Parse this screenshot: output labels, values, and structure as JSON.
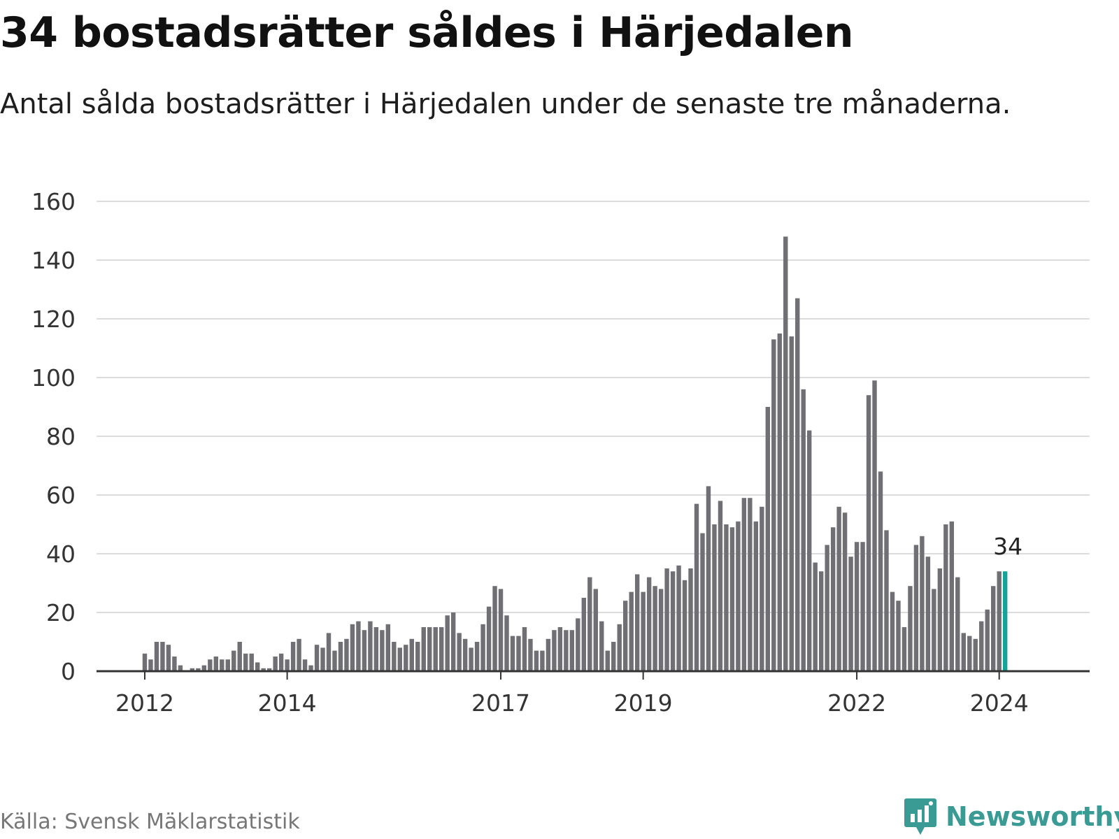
{
  "title": "34 bostadsrätter såldes i Härjedalen",
  "subtitle": "Antal sålda bostadsrätter i Härjedalen under de senaste tre månaderna.",
  "source": "Källa: Svensk Mäklarstatistik",
  "brand": "Newsworthy",
  "colors": {
    "bar": "#707074",
    "highlight": "#14a39b",
    "grid": "#dcdcdc",
    "axis": "#333333",
    "brand": "#3a9a94"
  },
  "chart_data": {
    "type": "bar",
    "title": "34 bostadsrätter såldes i Härjedalen",
    "xlabel": "",
    "ylabel": "",
    "ylim": [
      0,
      160
    ],
    "yticks": [
      0,
      20,
      40,
      60,
      80,
      100,
      120,
      140,
      160
    ],
    "xticks": [
      {
        "label": "2012",
        "index": 0
      },
      {
        "label": "2014",
        "index": 24
      },
      {
        "label": "2017",
        "index": 60
      },
      {
        "label": "2019",
        "index": 84
      },
      {
        "label": "2022",
        "index": 120
      },
      {
        "label": "2024",
        "index": 144
      }
    ],
    "start": "2012-01",
    "frequency": "monthly (rolling three-month total)",
    "values": [
      6,
      4,
      10,
      10,
      9,
      5,
      2,
      0,
      1,
      1,
      2,
      4,
      5,
      4,
      4,
      7,
      10,
      6,
      6,
      3,
      1,
      1,
      5,
      6,
      4,
      10,
      11,
      4,
      2,
      9,
      8,
      13,
      7,
      10,
      11,
      16,
      17,
      14,
      17,
      15,
      14,
      16,
      10,
      8,
      9,
      11,
      10,
      15,
      15,
      15,
      15,
      19,
      20,
      13,
      11,
      8,
      10,
      16,
      22,
      29,
      28,
      19,
      12,
      12,
      15,
      11,
      7,
      7,
      11,
      14,
      15,
      14,
      14,
      18,
      25,
      32,
      28,
      17,
      7,
      10,
      16,
      24,
      27,
      33,
      27,
      32,
      29,
      28,
      35,
      34,
      36,
      31,
      35,
      57,
      47,
      63,
      50,
      58,
      50,
      49,
      51,
      59,
      59,
      51,
      56,
      90,
      113,
      115,
      148,
      114,
      127,
      96,
      82,
      37,
      34,
      43,
      49,
      56,
      54,
      39,
      44,
      44,
      94,
      99,
      68,
      48,
      27,
      24,
      15,
      29,
      43,
      46,
      39,
      28,
      35,
      50,
      51,
      32,
      13,
      12,
      11,
      17,
      21,
      29,
      34,
      34
    ],
    "highlight_index": 145,
    "annotations": [
      {
        "index": 145,
        "text": "34"
      }
    ]
  }
}
